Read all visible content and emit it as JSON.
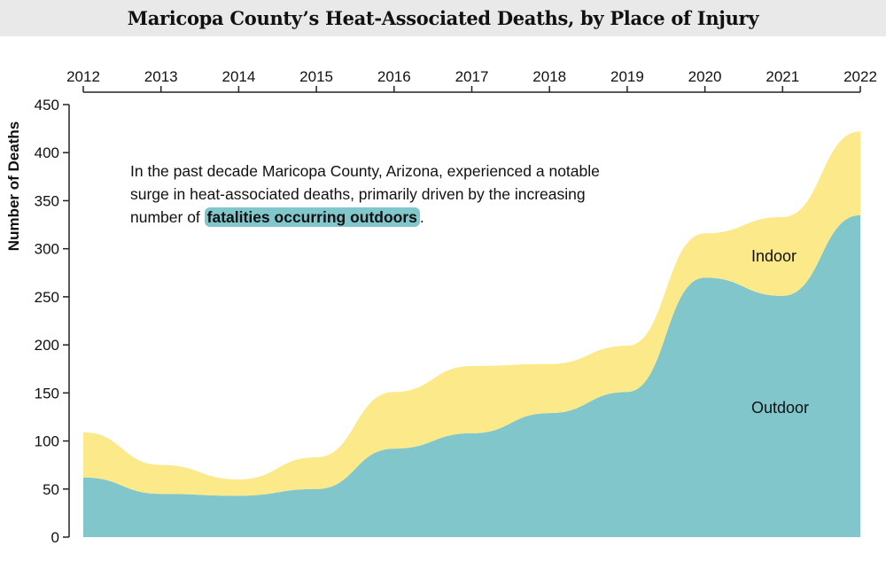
{
  "chart_data": {
    "type": "area",
    "stacked": true,
    "title": "Maricopa County’s Heat-Associated Deaths, by Place of Injury",
    "xlabel": "",
    "ylabel": "Number of Deaths",
    "x": [
      2012,
      2013,
      2014,
      2015,
      2016,
      2017,
      2018,
      2019,
      2020,
      2021,
      2022
    ],
    "x_tick_labels": [
      "2012",
      "2013",
      "2014",
      "2015",
      "2016",
      "2017",
      "2018",
      "2019",
      "2020",
      "2021",
      "2022"
    ],
    "x_axis_position": "top",
    "ylim": [
      0,
      450
    ],
    "y_ticks": [
      0,
      50,
      100,
      150,
      200,
      250,
      300,
      350,
      400,
      450
    ],
    "grid": false,
    "series": [
      {
        "name": "Outdoor",
        "color": "#80c6cb",
        "values": [
          62,
          45,
          43,
          50,
          92,
          108,
          129,
          151,
          270,
          251,
          335
        ]
      },
      {
        "name": "Indoor",
        "color": "#fbe98a",
        "values": [
          47,
          30,
          17,
          33,
          59,
          70,
          51,
          48,
          46,
          82,
          87
        ]
      }
    ],
    "annotation": {
      "text_before": "In the past decade Maricopa County, Arizona, experienced a notable surge in heat-associated deaths, primarily driven by the increasing number of ",
      "highlight": "fatalities occurring outdoors",
      "text_after": ".",
      "highlight_color": "#80c6cb"
    }
  }
}
